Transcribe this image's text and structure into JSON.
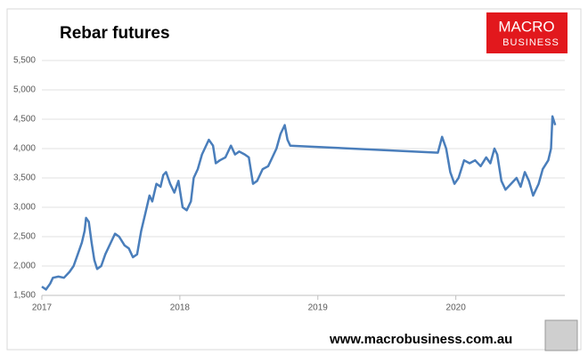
{
  "chart_data": {
    "type": "line",
    "title": "Rebar futures",
    "logo": [
      "MACRO",
      "BUSINESS"
    ],
    "footer": "www.macrobusiness.com.au",
    "x": [
      2017.0,
      2017.03,
      2017.06,
      2017.08,
      2017.12,
      2017.16,
      2017.2,
      2017.23,
      2017.26,
      2017.29,
      2017.31,
      2017.32,
      2017.34,
      2017.36,
      2017.38,
      2017.4,
      2017.43,
      2017.46,
      2017.5,
      2017.53,
      2017.56,
      2017.6,
      2017.63,
      2017.66,
      2017.69,
      2017.72,
      2017.75,
      2017.78,
      2017.8,
      2017.83,
      2017.86,
      2017.88,
      2017.9,
      2017.93,
      2017.96,
      2017.99,
      2018.02,
      2018.05,
      2018.08,
      2018.1,
      2018.13,
      2018.16,
      2018.18,
      2018.21,
      2018.24,
      2018.26,
      2018.29,
      2018.33,
      2018.37,
      2018.4,
      2018.43,
      2018.47,
      2018.5,
      2018.53,
      2018.56,
      2018.6,
      2018.64,
      2018.67,
      2018.7,
      2018.73,
      2018.76,
      2018.78,
      2018.8,
      2019.87,
      2019.9,
      2019.93,
      2019.96,
      2019.99,
      2020.02,
      2020.06,
      2020.1,
      2020.14,
      2020.18,
      2020.22,
      2020.25,
      2020.28,
      2020.3,
      2020.33,
      2020.36,
      2020.4,
      2020.44,
      2020.47,
      2020.5,
      2020.53,
      2020.56,
      2020.6,
      2020.63,
      2020.67,
      2020.69,
      2020.7,
      2020.72
    ],
    "series": [
      {
        "name": "Rebar futures",
        "color": "#4a7ebb",
        "values": [
          1650,
          1600,
          1700,
          1800,
          1820,
          1800,
          1900,
          2000,
          2200,
          2400,
          2600,
          2820,
          2750,
          2400,
          2100,
          1950,
          2000,
          2200,
          2400,
          2550,
          2500,
          2350,
          2300,
          2150,
          2200,
          2600,
          2900,
          3200,
          3100,
          3400,
          3350,
          3550,
          3600,
          3400,
          3250,
          3450,
          3000,
          2950,
          3100,
          3500,
          3650,
          3900,
          4000,
          4150,
          4050,
          3750,
          3800,
          3850,
          4050,
          3900,
          3950,
          3900,
          3850,
          3400,
          3450,
          3650,
          3700,
          3850,
          4000,
          4250,
          4400,
          4150,
          4050,
          3930,
          4200,
          4000,
          3600,
          3400,
          3500,
          3800,
          3750,
          3800,
          3700,
          3850,
          3750,
          4000,
          3900,
          3450,
          3300,
          3400,
          3500,
          3350,
          3600,
          3450,
          3200,
          3400,
          3650,
          3800,
          4000,
          4550,
          4400
        ]
      }
    ],
    "xlim": [
      2017,
      2020.79
    ],
    "xticks": [
      2017,
      2018,
      2019,
      2020
    ],
    "ylim": [
      1500,
      5500
    ],
    "yticks": [
      {
        "value": 1500,
        "label": "1,500"
      },
      {
        "value": 2000,
        "label": "2,000"
      },
      {
        "value": 2500,
        "label": "2,500"
      },
      {
        "value": 3000,
        "label": "3,000"
      },
      {
        "value": 3500,
        "label": "3,500"
      },
      {
        "value": 4000,
        "label": "4,000"
      },
      {
        "value": 4500,
        "label": "4,500"
      },
      {
        "value": 5000,
        "label": "5,000"
      },
      {
        "value": 5500,
        "label": "5,500"
      }
    ],
    "grid": true
  }
}
